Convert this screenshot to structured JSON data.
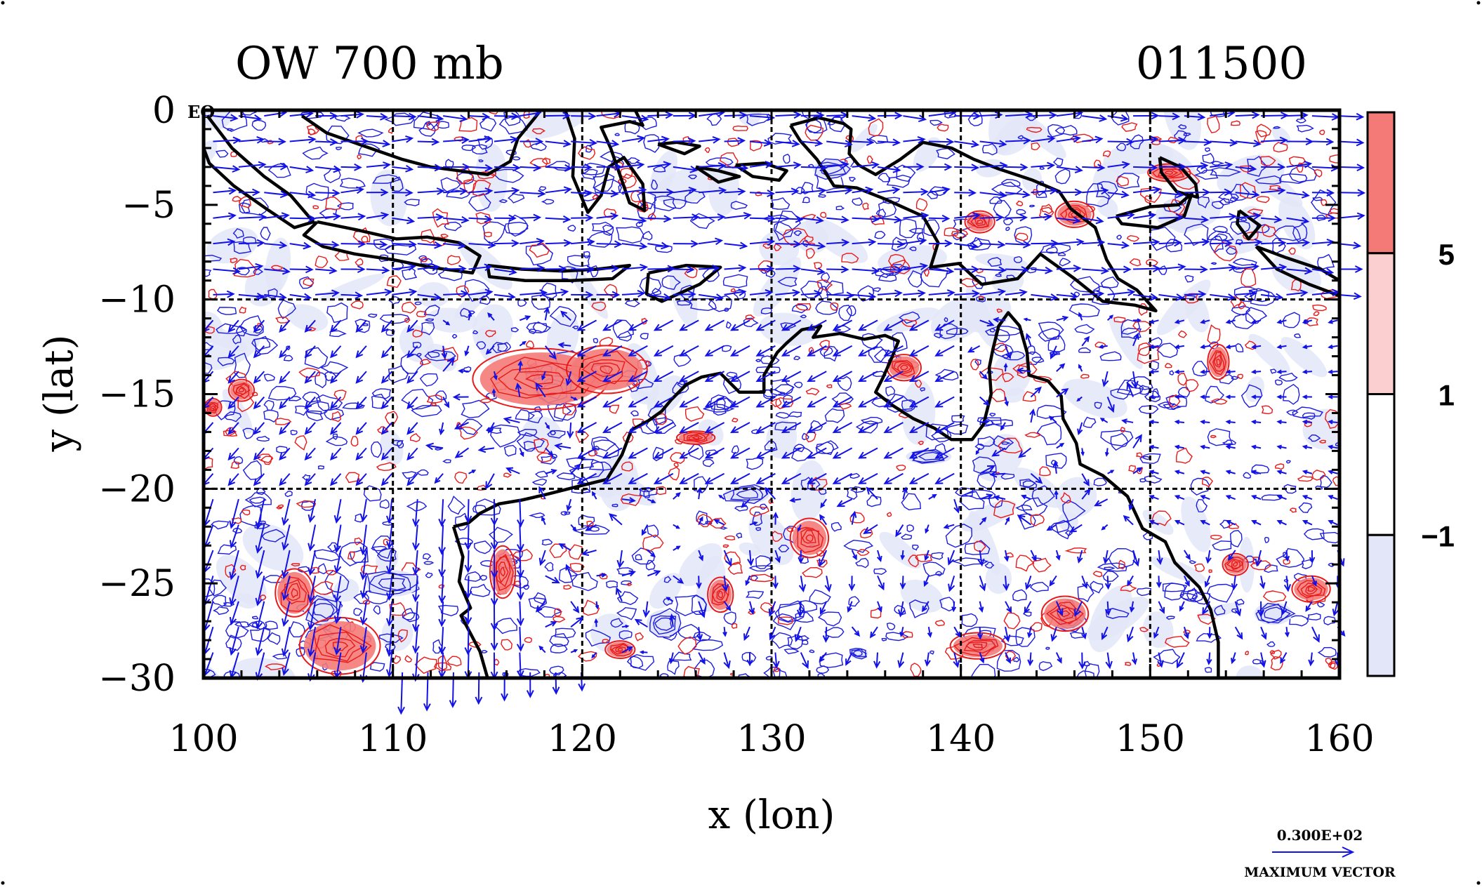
{
  "plot": {
    "title_left": "OW 700 mb",
    "title_right": "011500",
    "xlabel": "x (lon)",
    "ylabel": "y (lat)",
    "eq_label": "EQ",
    "vector_scale": {
      "value_label": "0.300E+02",
      "caption": "MAXIMUM VECTOR"
    }
  },
  "chart_data": {
    "type": "map",
    "x_range": [
      100,
      160
    ],
    "y_range": [
      -30,
      0
    ],
    "x_ticks": [
      "100",
      "110",
      "120",
      "130",
      "140",
      "150",
      "160"
    ],
    "y_ticks": [
      "0",
      "−5",
      "−10",
      "−15",
      "−20",
      "−25",
      "−30"
    ],
    "gridlines_lon": [
      110,
      120,
      130,
      140,
      150
    ],
    "gridlines_lat": [
      -10,
      -20
    ],
    "colorbar": {
      "labels": [
        "5",
        "1",
        "−1"
      ],
      "colors": [
        "#f47a78",
        "#fbcfcf",
        "#ffffff",
        "#e3e6f8"
      ]
    },
    "colors": {
      "vectors": "#1212e6",
      "positive_contour": "#e81a1a",
      "negative_contour": "#1c1ce0",
      "coast": "#000000"
    },
    "coastlines": [
      [
        [
          105.2,
          -0.3
        ],
        [
          106.5,
          -1.2
        ],
        [
          108.2,
          -1.8
        ],
        [
          110.5,
          -2.6
        ],
        [
          112.0,
          -3.0
        ],
        [
          113.5,
          -3.2
        ],
        [
          115.0,
          -3.4
        ],
        [
          116.2,
          -2.7
        ],
        [
          116.6,
          -1.5
        ],
        [
          117.5,
          -0.4
        ],
        [
          117.8,
          0.0
        ]
      ],
      [
        [
          100.2,
          -0.3
        ],
        [
          101.5,
          -2.0
        ],
        [
          103.2,
          -3.5
        ],
        [
          104.6,
          -4.5
        ],
        [
          105.8,
          -5.9
        ],
        [
          104.8,
          -6.2
        ],
        [
          103.3,
          -5.2
        ],
        [
          101.6,
          -4.0
        ],
        [
          100.3,
          -2.8
        ],
        [
          100.0,
          -2.0
        ]
      ],
      [
        [
          106.0,
          -5.9
        ],
        [
          108.0,
          -6.3
        ],
        [
          110.2,
          -6.8
        ],
        [
          111.8,
          -6.7
        ],
        [
          113.5,
          -7.0
        ],
        [
          114.6,
          -7.7
        ],
        [
          114.2,
          -8.6
        ],
        [
          112.0,
          -8.3
        ],
        [
          110.0,
          -7.9
        ],
        [
          108.0,
          -7.6
        ],
        [
          106.3,
          -7.2
        ],
        [
          105.3,
          -6.6
        ],
        [
          106.0,
          -5.9
        ]
      ],
      [
        [
          115.0,
          -8.2
        ],
        [
          116.8,
          -8.4
        ],
        [
          119.0,
          -8.5
        ],
        [
          120.8,
          -8.4
        ],
        [
          122.5,
          -8.2
        ],
        [
          121.6,
          -8.9
        ],
        [
          119.4,
          -9.0
        ],
        [
          117.0,
          -9.0
        ],
        [
          115.1,
          -8.8
        ],
        [
          115.0,
          -8.2
        ]
      ],
      [
        [
          123.5,
          -8.6
        ],
        [
          125.5,
          -8.2
        ],
        [
          127.3,
          -8.3
        ],
        [
          126.2,
          -9.2
        ],
        [
          124.2,
          -10.1
        ],
        [
          123.4,
          -9.7
        ],
        [
          123.5,
          -8.6
        ]
      ],
      [
        [
          119.1,
          0.0
        ],
        [
          119.6,
          -1.5
        ],
        [
          119.5,
          -3.5
        ],
        [
          120.3,
          -5.4
        ],
        [
          121.0,
          -4.5
        ],
        [
          121.4,
          -3.0
        ],
        [
          122.2,
          -2.5
        ],
        [
          123.2,
          -3.9
        ],
        [
          123.3,
          -5.3
        ],
        [
          122.5,
          -4.9
        ],
        [
          121.5,
          -2.0
        ],
        [
          121.0,
          -0.9
        ],
        [
          122.5,
          -0.6
        ],
        [
          123.2,
          -0.8
        ],
        [
          122.8,
          0.0
        ]
      ],
      [
        [
          124.0,
          -1.8
        ],
        [
          125.0,
          -1.7
        ],
        [
          126.2,
          -1.9
        ],
        [
          125.4,
          -2.3
        ],
        [
          124.0,
          -1.8
        ]
      ],
      [
        [
          126.0,
          -3.0
        ],
        [
          127.2,
          -3.2
        ],
        [
          128.3,
          -3.5
        ],
        [
          127.2,
          -3.8
        ],
        [
          126.0,
          -3.0
        ]
      ],
      [
        [
          128.1,
          -2.9
        ],
        [
          129.6,
          -2.8
        ],
        [
          130.8,
          -3.2
        ],
        [
          130.4,
          -3.7
        ],
        [
          129.0,
          -3.5
        ],
        [
          128.1,
          -2.9
        ]
      ],
      [
        [
          131.0,
          -0.8
        ],
        [
          132.5,
          -0.4
        ],
        [
          133.8,
          -0.7
        ],
        [
          134.2,
          -1.0
        ],
        [
          134.1,
          -2.3
        ],
        [
          134.6,
          -2.9
        ],
        [
          135.5,
          -3.4
        ],
        [
          136.8,
          -2.6
        ],
        [
          138.0,
          -1.7
        ],
        [
          139.5,
          -2.0
        ],
        [
          140.7,
          -2.6
        ],
        [
          142.0,
          -3.1
        ],
        [
          143.8,
          -3.7
        ],
        [
          145.2,
          -4.3
        ],
        [
          145.8,
          -5.2
        ],
        [
          147.1,
          -6.2
        ],
        [
          147.7,
          -7.9
        ],
        [
          148.3,
          -8.9
        ],
        [
          149.3,
          -9.5
        ],
        [
          150.3,
          -10.6
        ],
        [
          149.2,
          -10.3
        ],
        [
          147.5,
          -10.1
        ],
        [
          146.0,
          -8.9
        ],
        [
          144.2,
          -7.6
        ],
        [
          143.0,
          -8.9
        ],
        [
          141.1,
          -9.2
        ],
        [
          139.9,
          -8.1
        ],
        [
          138.4,
          -8.3
        ],
        [
          138.8,
          -7.0
        ],
        [
          138.0,
          -5.6
        ],
        [
          136.0,
          -4.7
        ],
        [
          134.5,
          -4.1
        ],
        [
          133.3,
          -4.0
        ],
        [
          132.4,
          -2.6
        ],
        [
          131.5,
          -1.6
        ],
        [
          131.0,
          -0.8
        ]
      ],
      [
        [
          150.5,
          -2.5
        ],
        [
          151.6,
          -3.0
        ],
        [
          152.4,
          -3.9
        ],
        [
          152.5,
          -4.6
        ],
        [
          151.4,
          -4.3
        ],
        [
          150.6,
          -3.3
        ],
        [
          150.5,
          -2.5
        ]
      ],
      [
        [
          148.2,
          -5.6
        ],
        [
          150.0,
          -5.1
        ],
        [
          151.5,
          -5.0
        ],
        [
          152.2,
          -4.4
        ],
        [
          151.8,
          -5.6
        ],
        [
          150.4,
          -6.2
        ],
        [
          148.5,
          -6.0
        ],
        [
          148.2,
          -5.6
        ]
      ],
      [
        [
          154.7,
          -5.3
        ],
        [
          155.8,
          -6.1
        ],
        [
          155.2,
          -6.8
        ],
        [
          154.6,
          -6.0
        ],
        [
          154.7,
          -5.3
        ]
      ],
      [
        [
          155.6,
          -7.2
        ],
        [
          157.2,
          -7.8
        ],
        [
          159.0,
          -8.4
        ],
        [
          160.0,
          -9.0
        ],
        [
          160.0,
          -9.8
        ],
        [
          158.4,
          -9.2
        ],
        [
          156.7,
          -8.4
        ],
        [
          155.6,
          -7.2
        ]
      ],
      [
        [
          113.2,
          -22.0
        ],
        [
          114.0,
          -21.8
        ],
        [
          114.6,
          -21.3
        ],
        [
          115.6,
          -20.8
        ],
        [
          116.8,
          -20.6
        ],
        [
          118.1,
          -20.3
        ],
        [
          119.7,
          -19.9
        ],
        [
          121.3,
          -19.5
        ],
        [
          122.1,
          -18.2
        ],
        [
          122.6,
          -16.9
        ],
        [
          123.5,
          -16.4
        ],
        [
          124.2,
          -15.9
        ],
        [
          124.7,
          -15.3
        ],
        [
          125.5,
          -14.5
        ],
        [
          126.3,
          -14.1
        ],
        [
          127.3,
          -13.9
        ],
        [
          128.3,
          -14.9
        ],
        [
          129.6,
          -14.9
        ],
        [
          129.6,
          -14.0
        ],
        [
          130.3,
          -12.8
        ],
        [
          130.8,
          -12.3
        ],
        [
          131.6,
          -11.6
        ],
        [
          132.6,
          -11.4
        ],
        [
          132.2,
          -12.0
        ],
        [
          133.6,
          -11.8
        ],
        [
          134.9,
          -12.1
        ],
        [
          136.0,
          -11.9
        ],
        [
          136.7,
          -12.2
        ],
        [
          136.3,
          -13.2
        ],
        [
          135.9,
          -14.1
        ],
        [
          135.5,
          -14.9
        ],
        [
          136.4,
          -15.6
        ],
        [
          137.5,
          -16.3
        ],
        [
          138.6,
          -16.8
        ],
        [
          139.5,
          -17.4
        ],
        [
          140.6,
          -17.4
        ],
        [
          141.2,
          -16.6
        ],
        [
          141.6,
          -15.0
        ],
        [
          141.5,
          -13.6
        ],
        [
          141.7,
          -12.6
        ],
        [
          142.0,
          -11.4
        ],
        [
          142.5,
          -10.7
        ],
        [
          143.1,
          -11.4
        ],
        [
          143.5,
          -12.8
        ],
        [
          143.6,
          -14.0
        ],
        [
          144.6,
          -14.3
        ],
        [
          145.3,
          -15.1
        ],
        [
          145.4,
          -16.3
        ],
        [
          146.1,
          -17.6
        ],
        [
          146.3,
          -18.7
        ],
        [
          147.5,
          -19.3
        ],
        [
          148.8,
          -20.4
        ],
        [
          149.6,
          -22.1
        ],
        [
          150.8,
          -22.8
        ],
        [
          151.3,
          -23.9
        ],
        [
          152.6,
          -25.2
        ],
        [
          153.2,
          -26.4
        ],
        [
          153.6,
          -28.1
        ],
        [
          153.6,
          -30.0
        ]
      ],
      [
        [
          113.2,
          -22.0
        ],
        [
          113.7,
          -23.6
        ],
        [
          113.5,
          -24.9
        ],
        [
          114.1,
          -26.3
        ],
        [
          113.6,
          -26.7
        ],
        [
          114.6,
          -28.6
        ],
        [
          115.0,
          -30.0
        ]
      ]
    ],
    "contour_blobs_positive": [
      [
        117.8,
        -14.2,
        3.2,
        1.4
      ],
      [
        121.3,
        -13.7,
        1.9,
        1.1
      ],
      [
        104.8,
        -25.5,
        0.9,
        1.1
      ],
      [
        107.2,
        -28.3,
        1.9,
        1.3
      ],
      [
        140.9,
        -28.3,
        1.3,
        0.6
      ],
      [
        145.5,
        -26.6,
        1.1,
        0.8
      ],
      [
        127.3,
        -25.6,
        0.6,
        0.8
      ],
      [
        132.0,
        -22.6,
        0.9,
        0.9
      ],
      [
        137.0,
        -13.6,
        0.8,
        0.6
      ],
      [
        153.6,
        -13.3,
        0.5,
        0.8
      ],
      [
        151.0,
        -3.3,
        1.0,
        0.4
      ],
      [
        146.0,
        -5.5,
        0.9,
        0.6
      ],
      [
        141.0,
        -5.9,
        0.7,
        0.5
      ],
      [
        115.8,
        -24.4,
        0.6,
        1.2
      ],
      [
        126.0,
        -17.3,
        0.9,
        0.3
      ],
      [
        122.0,
        -28.5,
        0.7,
        0.4
      ],
      [
        100.5,
        -15.7,
        0.4,
        0.4
      ],
      [
        102.0,
        -14.8,
        0.6,
        0.5
      ],
      [
        158.5,
        -25.3,
        0.9,
        0.6
      ],
      [
        154.5,
        -24.0,
        0.6,
        0.5
      ]
    ],
    "contour_blobs_negative": [
      [
        106.3,
        -26.4,
        1.0,
        0.8
      ],
      [
        118.5,
        -14.8,
        1.1,
        0.8
      ],
      [
        124.3,
        -27.1,
        0.9,
        0.7
      ],
      [
        134.6,
        -28.7,
        0.5,
        0.3
      ],
      [
        128.7,
        -20.3,
        1.2,
        0.5
      ],
      [
        145.8,
        -27.0,
        0.8,
        0.5
      ],
      [
        133.2,
        -3.1,
        1.0,
        0.5
      ],
      [
        138.3,
        -18.3,
        1.2,
        0.4
      ],
      [
        110.0,
        -25.0,
        1.4,
        0.7
      ],
      [
        156.5,
        -26.6,
        1.0,
        0.6
      ]
    ]
  }
}
